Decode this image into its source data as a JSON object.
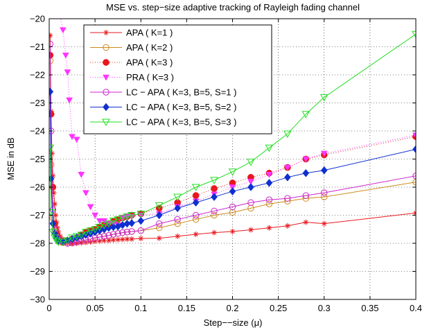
{
  "chart_data": {
    "type": "line",
    "title": "MSE vs. step−size adaptive tracking of Rayleigh fading channel",
    "xlabel": "Step−−size (μ)",
    "ylabel": "MSE  in dB",
    "xlim": [
      0,
      0.4
    ],
    "ylim": [
      -30,
      -20
    ],
    "xticks": [
      0,
      0.05,
      0.1,
      0.15,
      0.2,
      0.25,
      0.3,
      0.35,
      0.4
    ],
    "xtick_labels": [
      "0",
      "0.05",
      "0.1",
      "0.15",
      "0.2",
      "0.25",
      "0.3",
      "0.35",
      "0.4"
    ],
    "yticks": [
      -30,
      -29,
      -28,
      -27,
      -26,
      -25,
      -24,
      -23,
      -22,
      -21,
      -20
    ],
    "ytick_labels": [
      "−30",
      "−29",
      "−28",
      "−27",
      "−26",
      "−25",
      "−24",
      "−23",
      "−22",
      "−21",
      "−20"
    ],
    "grid": true,
    "legend_position": "top-left",
    "series": [
      {
        "name": "APA ( K=1 )",
        "color": "#e8171c",
        "marker": "asterisk",
        "line": "solid",
        "x": [
          0.001,
          0.002,
          0.003,
          0.004,
          0.005,
          0.006,
          0.007,
          0.008,
          0.009,
          0.01,
          0.012,
          0.014,
          0.016,
          0.018,
          0.02,
          0.025,
          0.03,
          0.035,
          0.04,
          0.045,
          0.05,
          0.055,
          0.06,
          0.065,
          0.07,
          0.075,
          0.08,
          0.085,
          0.09,
          0.1,
          0.12,
          0.14,
          0.16,
          0.18,
          0.2,
          0.22,
          0.24,
          0.26,
          0.28,
          0.3,
          0.4
        ],
        "y": [
          -20.6,
          -23.3,
          -24.8,
          -25.6,
          -26.2,
          -26.6,
          -27.0,
          -27.25,
          -27.45,
          -27.6,
          -27.75,
          -27.85,
          -27.9,
          -27.95,
          -28.0,
          -28.02,
          -28.0,
          -27.98,
          -27.97,
          -27.95,
          -27.93,
          -27.92,
          -27.9,
          -27.9,
          -27.88,
          -27.87,
          -27.86,
          -27.85,
          -27.85,
          -27.83,
          -27.82,
          -27.75,
          -27.68,
          -27.62,
          -27.58,
          -27.52,
          -27.45,
          -27.38,
          -27.25,
          -27.3,
          -26.92
        ]
      },
      {
        "name": "APA ( K=2 )",
        "color": "#cc8a1a",
        "marker": "circle",
        "line": "solid",
        "x": [
          0.001,
          0.002,
          0.004,
          0.006,
          0.008,
          0.01,
          0.012,
          0.015,
          0.02,
          0.025,
          0.03,
          0.035,
          0.04,
          0.045,
          0.05,
          0.055,
          0.06,
          0.065,
          0.07,
          0.075,
          0.08,
          0.085,
          0.09,
          0.1,
          0.12,
          0.14,
          0.16,
          0.18,
          0.2,
          0.22,
          0.24,
          0.26,
          0.28,
          0.3,
          0.4
        ],
        "y": [
          -21.5,
          -25.2,
          -27.1,
          -27.6,
          -27.8,
          -27.9,
          -27.95,
          -27.98,
          -28.0,
          -27.98,
          -27.95,
          -27.92,
          -27.88,
          -27.85,
          -27.8,
          -27.78,
          -27.75,
          -27.72,
          -27.68,
          -27.65,
          -27.62,
          -27.6,
          -27.58,
          -27.55,
          -27.45,
          -27.3,
          -27.15,
          -27.0,
          -26.9,
          -26.75,
          -26.6,
          -26.5,
          -26.4,
          -26.35,
          -25.82
        ]
      },
      {
        "name": "APA ( K=3 )",
        "color": "#e8171c",
        "marker": "filled-circle",
        "line": "dotted",
        "x": [
          0.001,
          0.002,
          0.004,
          0.006,
          0.008,
          0.01,
          0.015,
          0.02,
          0.025,
          0.03,
          0.035,
          0.04,
          0.045,
          0.05,
          0.055,
          0.06,
          0.065,
          0.07,
          0.075,
          0.08,
          0.085,
          0.09,
          0.1,
          0.12,
          0.14,
          0.16,
          0.18,
          0.2,
          0.22,
          0.24,
          0.26,
          0.28,
          0.3,
          0.4
        ],
        "y": [
          -21.3,
          -23.4,
          -26.0,
          -27.3,
          -27.7,
          -27.85,
          -27.95,
          -27.9,
          -27.85,
          -27.8,
          -27.7,
          -27.6,
          -27.55,
          -27.5,
          -27.42,
          -27.35,
          -27.3,
          -27.22,
          -27.15,
          -27.1,
          -27.05,
          -27.0,
          -26.95,
          -26.75,
          -26.55,
          -26.3,
          -26.05,
          -25.85,
          -25.65,
          -25.5,
          -25.3,
          -25.0,
          -24.85,
          -24.2
        ]
      },
      {
        "name": "PRA ( K=3 )",
        "color": "#ff33ff",
        "marker": "filled-triangle-down",
        "line": "dotted",
        "x": [
          0.01,
          0.015,
          0.018,
          0.02,
          0.022,
          0.025,
          0.03,
          0.035,
          0.04,
          0.045,
          0.05,
          0.055,
          0.06,
          0.065,
          0.07,
          0.075,
          0.08,
          0.085,
          0.09,
          0.1,
          0.12,
          0.14,
          0.16,
          0.18,
          0.2,
          0.22,
          0.24,
          0.26,
          0.28,
          0.3,
          0.4
        ],
        "y": [
          -19.6,
          -20.4,
          -21.3,
          -21.9,
          -22.9,
          -24.2,
          -24.3,
          -25.55,
          -26.2,
          -26.7,
          -27.0,
          -27.2,
          -27.2,
          -27.3,
          -27.3,
          -27.35,
          -27.1,
          -27.05,
          -27.05,
          -27.0,
          -26.95,
          -26.7,
          -26.5,
          -26.25,
          -26.0,
          -25.8,
          -25.55,
          -25.3,
          -25.0,
          -24.8,
          -24.15
        ]
      },
      {
        "name": "LC − APA ( K=3, B=5, S=1 )",
        "color": "#cc22cc",
        "marker": "circle",
        "line": "solid",
        "x": [
          0.001,
          0.002,
          0.004,
          0.006,
          0.008,
          0.01,
          0.015,
          0.02,
          0.025,
          0.03,
          0.035,
          0.04,
          0.045,
          0.05,
          0.055,
          0.06,
          0.065,
          0.07,
          0.075,
          0.08,
          0.085,
          0.09,
          0.1,
          0.12,
          0.14,
          0.16,
          0.18,
          0.2,
          0.22,
          0.24,
          0.26,
          0.28,
          0.3,
          0.4
        ],
        "y": [
          -20.9,
          -24.0,
          -26.8,
          -27.5,
          -27.75,
          -27.85,
          -27.95,
          -28.0,
          -27.98,
          -27.95,
          -27.92,
          -27.88,
          -27.85,
          -27.8,
          -27.78,
          -27.75,
          -27.72,
          -27.68,
          -27.65,
          -27.62,
          -27.6,
          -27.58,
          -27.55,
          -27.3,
          -27.15,
          -27.0,
          -26.85,
          -26.7,
          -26.55,
          -26.45,
          -26.4,
          -26.3,
          -26.2,
          -25.6
        ]
      },
      {
        "name": "LC − APA ( K=3, B=5, S=2 )",
        "color": "#0f2fd0",
        "marker": "filled-diamond",
        "line": "solid",
        "x": [
          0.001,
          0.002,
          0.004,
          0.006,
          0.008,
          0.01,
          0.015,
          0.02,
          0.025,
          0.03,
          0.035,
          0.04,
          0.045,
          0.05,
          0.055,
          0.06,
          0.065,
          0.07,
          0.075,
          0.08,
          0.085,
          0.09,
          0.1,
          0.12,
          0.14,
          0.16,
          0.18,
          0.2,
          0.22,
          0.24,
          0.26,
          0.28,
          0.3,
          0.4
        ],
        "y": [
          -22.6,
          -25.7,
          -27.3,
          -27.65,
          -27.8,
          -27.9,
          -27.95,
          -27.9,
          -27.85,
          -27.8,
          -27.75,
          -27.7,
          -27.65,
          -27.6,
          -27.55,
          -27.5,
          -27.45,
          -27.42,
          -27.4,
          -27.35,
          -27.3,
          -27.28,
          -27.2,
          -27.0,
          -26.75,
          -26.55,
          -26.35,
          -26.15,
          -26.0,
          -25.85,
          -25.65,
          -25.5,
          -25.4,
          -24.65
        ]
      },
      {
        "name": "LC − APA ( K=3, B=5, S=3 )",
        "color": "#22dd22",
        "marker": "triangle-down",
        "line": "solid",
        "x": [
          0.001,
          0.002,
          0.004,
          0.006,
          0.008,
          0.01,
          0.015,
          0.02,
          0.025,
          0.03,
          0.035,
          0.04,
          0.045,
          0.05,
          0.055,
          0.06,
          0.065,
          0.07,
          0.075,
          0.08,
          0.085,
          0.09,
          0.1,
          0.12,
          0.14,
          0.16,
          0.18,
          0.2,
          0.22,
          0.24,
          0.26,
          0.28,
          0.3,
          0.4
        ],
        "y": [
          -24.6,
          -26.9,
          -27.6,
          -27.8,
          -27.9,
          -27.95,
          -27.95,
          -27.9,
          -27.8,
          -27.75,
          -27.7,
          -27.6,
          -27.55,
          -27.5,
          -27.42,
          -27.35,
          -27.3,
          -27.2,
          -27.15,
          -27.1,
          -27.05,
          -27.0,
          -26.95,
          -26.65,
          -26.35,
          -26.0,
          -25.75,
          -25.45,
          -25.1,
          -24.6,
          -24.1,
          -23.4,
          -22.8,
          -20.55
        ]
      }
    ]
  }
}
